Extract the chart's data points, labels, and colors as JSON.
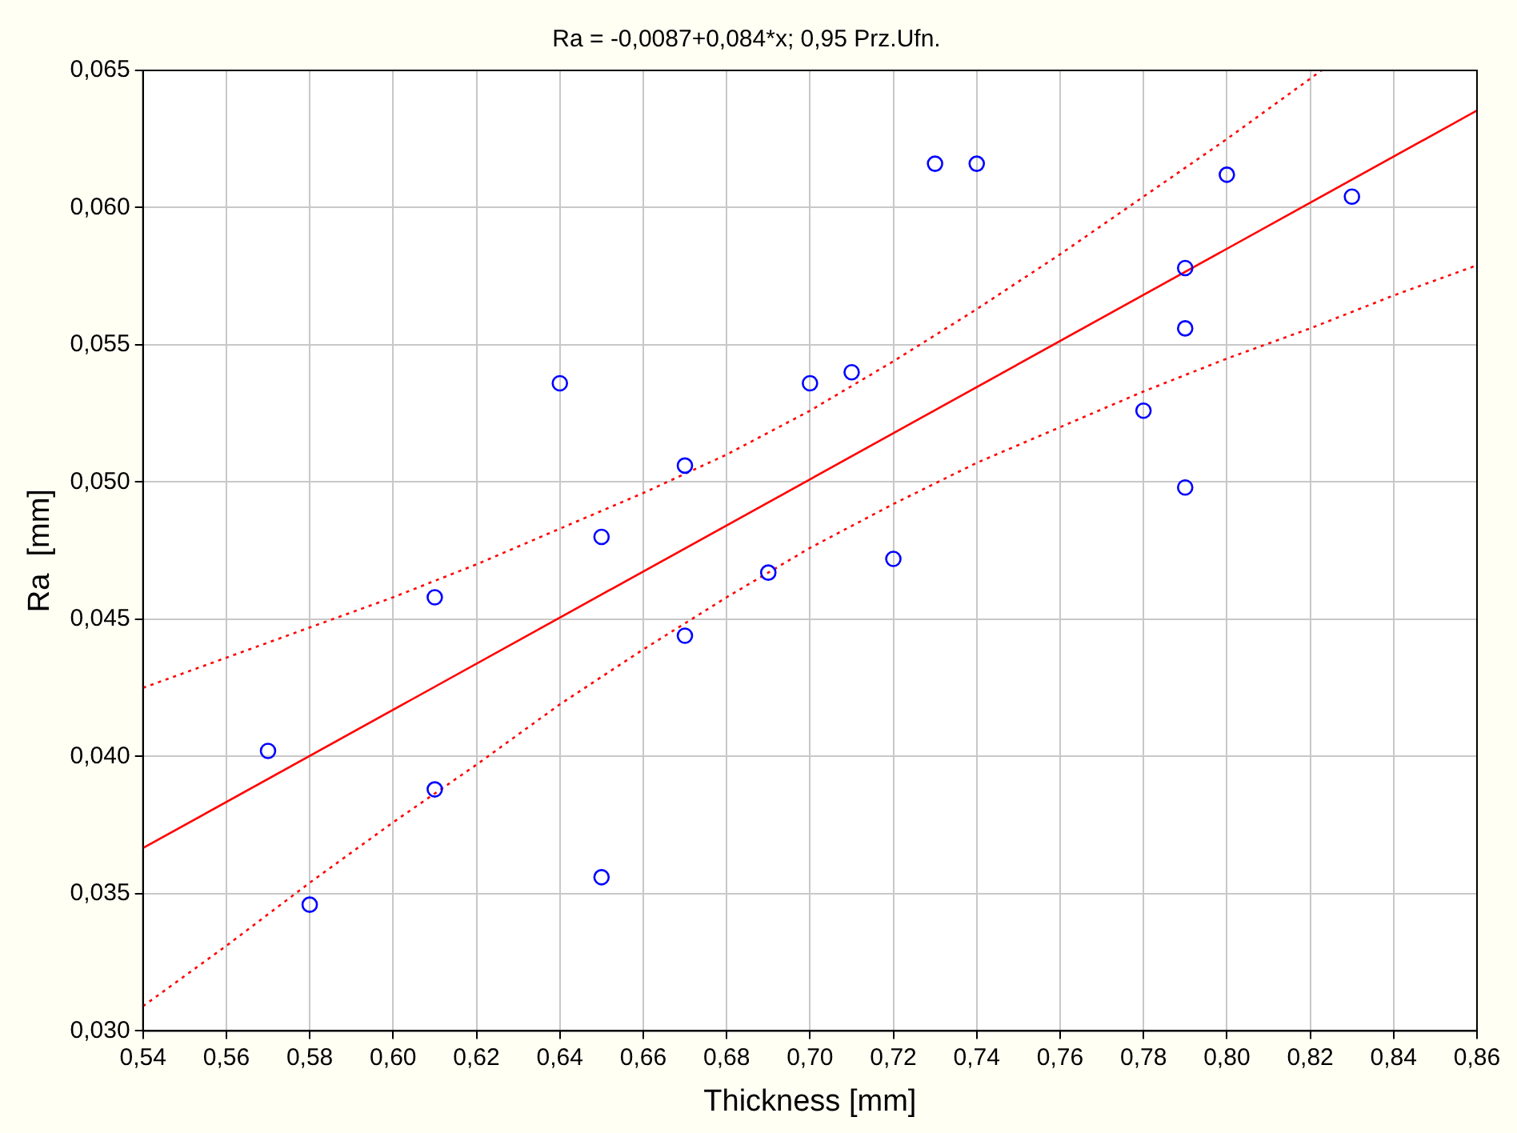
{
  "chart_data": {
    "type": "scatter",
    "title": "Ra = -0,0087+0,084*x; 0,95 Prz.Ufn.",
    "xlabel": "Thickness [mm]",
    "ylabel": "Ra  [mm]",
    "xlim": [
      0.54,
      0.86
    ],
    "xticks": [
      {
        "value": 0.54,
        "label": "0,54"
      },
      {
        "value": 0.56,
        "label": "0,56"
      },
      {
        "value": 0.58,
        "label": "0,58"
      },
      {
        "value": 0.6,
        "label": "0,60"
      },
      {
        "value": 0.62,
        "label": "0,62"
      },
      {
        "value": 0.64,
        "label": "0,64"
      },
      {
        "value": 0.66,
        "label": "0,66"
      },
      {
        "value": 0.68,
        "label": "0,68"
      },
      {
        "value": 0.7,
        "label": "0,70"
      },
      {
        "value": 0.72,
        "label": "0,72"
      },
      {
        "value": 0.74,
        "label": "0,74"
      },
      {
        "value": 0.76,
        "label": "0,76"
      },
      {
        "value": 0.78,
        "label": "0,78"
      },
      {
        "value": 0.8,
        "label": "0,80"
      },
      {
        "value": 0.82,
        "label": "0,82"
      },
      {
        "value": 0.84,
        "label": "0,84"
      },
      {
        "value": 0.86,
        "label": "0,86"
      }
    ],
    "ylim": [
      0.03,
      0.065
    ],
    "yticks": [
      {
        "value": 0.03,
        "label": "0,030"
      },
      {
        "value": 0.035,
        "label": "0,035"
      },
      {
        "value": 0.04,
        "label": "0,040"
      },
      {
        "value": 0.045,
        "label": "0,045"
      },
      {
        "value": 0.05,
        "label": "0,050"
      },
      {
        "value": 0.055,
        "label": "0,055"
      },
      {
        "value": 0.06,
        "label": "0,060"
      },
      {
        "value": 0.065,
        "label": "0,065"
      }
    ],
    "grid": true,
    "legend": false,
    "series": [
      {
        "color": "#0000ff",
        "marker": "circle",
        "x": [
          0.57,
          0.58,
          0.61,
          0.61,
          0.64,
          0.65,
          0.65,
          0.67,
          0.67,
          0.69,
          0.7,
          0.71,
          0.72,
          0.73,
          0.74,
          0.78,
          0.79,
          0.79,
          0.79,
          0.8,
          0.83
        ],
        "values": [
          0.0402,
          0.0346,
          0.0458,
          0.0388,
          0.0536,
          0.048,
          0.0356,
          0.0506,
          0.0444,
          0.0467,
          0.0536,
          0.054,
          0.0472,
          0.0616,
          0.0616,
          0.0526,
          0.0578,
          0.0556,
          0.0498,
          0.0612,
          0.0604
        ]
      },
      {
        "type": "line",
        "color": "#ff0000",
        "marker": "none",
        "line_style": "solid",
        "x": [
          0.54,
          0.86
        ],
        "values": [
          0.03666,
          0.06354
        ]
      },
      {
        "type": "line",
        "color": "#ff0000",
        "marker": "none",
        "line_style": "dotted",
        "x": [
          0.54,
          0.56,
          0.58,
          0.6,
          0.62,
          0.64,
          0.66,
          0.68,
          0.7,
          0.72,
          0.74,
          0.76,
          0.78,
          0.8,
          0.82,
          0.8227
        ],
        "values": [
          0.0425,
          0.0436,
          0.0447,
          0.0458,
          0.047,
          0.0483,
          0.0496,
          0.051,
          0.0526,
          0.0544,
          0.0563,
          0.0583,
          0.0604,
          0.0625,
          0.0647,
          0.065
        ]
      },
      {
        "type": "line",
        "color": "#ff0000",
        "marker": "none",
        "line_style": "dotted",
        "x": [
          0.54,
          0.56,
          0.58,
          0.6,
          0.62,
          0.64,
          0.66,
          0.68,
          0.7,
          0.72,
          0.74,
          0.76,
          0.78,
          0.8,
          0.82,
          0.84,
          0.86
        ],
        "values": [
          0.0309,
          0.0331,
          0.0354,
          0.0376,
          0.0397,
          0.0419,
          0.0439,
          0.0458,
          0.0476,
          0.0492,
          0.0507,
          0.052,
          0.0533,
          0.0545,
          0.0556,
          0.0568,
          0.0579
        ]
      }
    ]
  }
}
